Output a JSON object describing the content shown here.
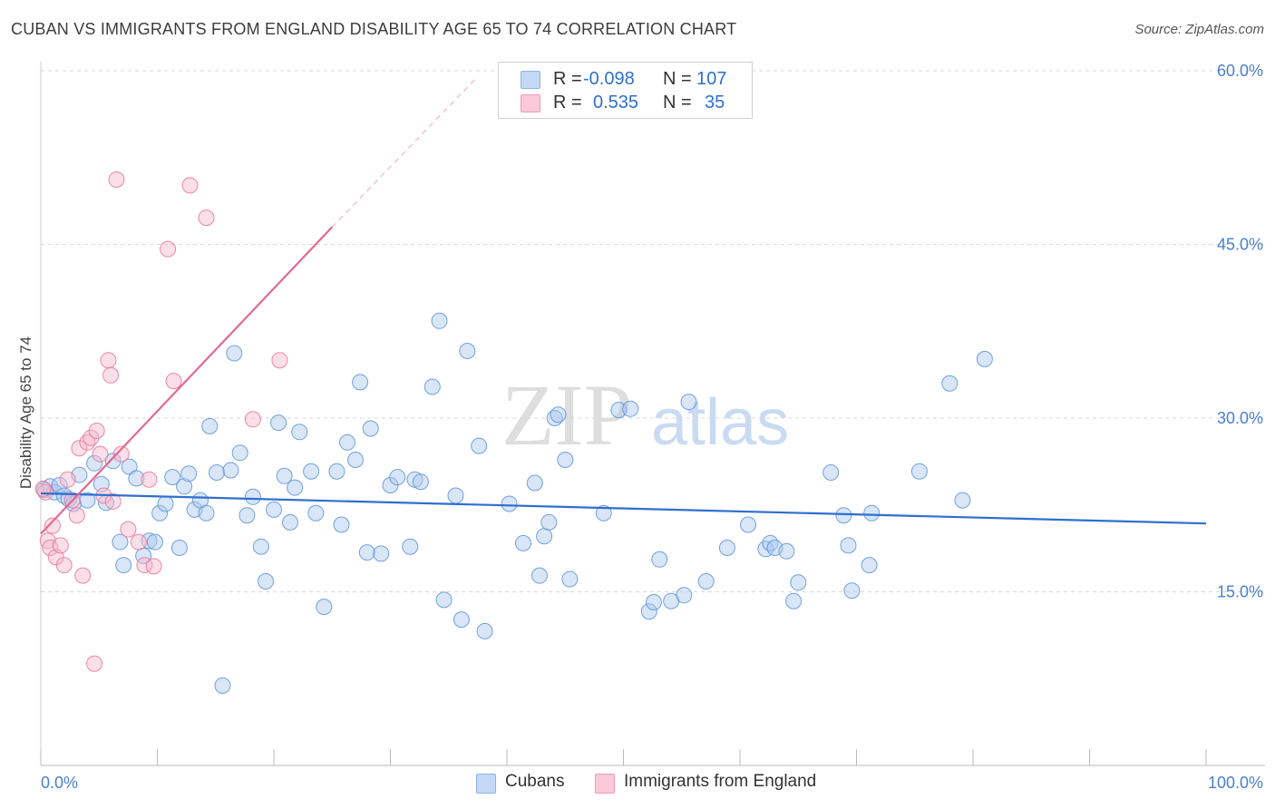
{
  "title": "CUBAN VS IMMIGRANTS FROM ENGLAND DISABILITY AGE 65 TO 74 CORRELATION CHART",
  "source": "Source: ZipAtlas.com",
  "watermark": {
    "left": "ZIP",
    "right": "atlas"
  },
  "legend": {
    "r_label": "R =",
    "n_label": "N =",
    "rows": [
      {
        "series": "Cubans",
        "r": "-0.098",
        "n": "107",
        "color": "#aac8f0"
      },
      {
        "series": "Immigrants from England",
        "r": "0.535",
        "n": "35",
        "color": "#f6b8cb"
      }
    ]
  },
  "bottom_legend": [
    "Cubans",
    "Immigrants from England"
  ],
  "chart_data": {
    "type": "scatter",
    "ylabel": "Disability Age 65 to 74",
    "xlabel": "",
    "xlim": [
      0,
      100
    ],
    "ylim": [
      0,
      60
    ],
    "x_tick_labels": [
      "0.0%",
      "100.0%"
    ],
    "y_tick_labels": [
      "15.0%",
      "30.0%",
      "45.0%",
      "60.0%"
    ],
    "y_ticks": [
      15,
      30,
      45,
      60
    ],
    "grid": true,
    "series": [
      {
        "name": "Cubans",
        "color": "#5b93d8",
        "fill": "#aac8f0",
        "trend": {
          "x": [
            0,
            100
          ],
          "y": [
            23.5,
            20.9
          ]
        },
        "points": [
          [
            0.3,
            23.8
          ],
          [
            0.8,
            24.1
          ],
          [
            1.2,
            23.6
          ],
          [
            1.6,
            24.2
          ],
          [
            2.0,
            23.3
          ],
          [
            2.4,
            23.0
          ],
          [
            2.8,
            22.6
          ],
          [
            3.3,
            25.1
          ],
          [
            4.0,
            22.9
          ],
          [
            4.6,
            26.1
          ],
          [
            5.2,
            24.3
          ],
          [
            5.6,
            22.7
          ],
          [
            6.2,
            26.3
          ],
          [
            6.8,
            19.3
          ],
          [
            7.1,
            17.3
          ],
          [
            7.6,
            25.8
          ],
          [
            8.2,
            24.8
          ],
          [
            8.8,
            18.1
          ],
          [
            9.3,
            19.4
          ],
          [
            9.8,
            19.3
          ],
          [
            10.2,
            21.8
          ],
          [
            10.7,
            22.6
          ],
          [
            11.3,
            24.9
          ],
          [
            11.9,
            18.8
          ],
          [
            12.3,
            24.1
          ],
          [
            12.7,
            25.2
          ],
          [
            13.2,
            22.1
          ],
          [
            13.7,
            22.9
          ],
          [
            14.2,
            21.8
          ],
          [
            14.5,
            29.3
          ],
          [
            15.1,
            25.3
          ],
          [
            16.3,
            25.5
          ],
          [
            16.6,
            35.6
          ],
          [
            17.1,
            27.0
          ],
          [
            17.7,
            21.6
          ],
          [
            18.2,
            23.2
          ],
          [
            18.9,
            18.9
          ],
          [
            19.3,
            15.9
          ],
          [
            20.0,
            22.1
          ],
          [
            20.4,
            29.6
          ],
          [
            20.9,
            25.0
          ],
          [
            21.4,
            21.0
          ],
          [
            21.8,
            24.0
          ],
          [
            22.2,
            28.8
          ],
          [
            23.2,
            25.4
          ],
          [
            23.6,
            21.8
          ],
          [
            24.3,
            13.7
          ],
          [
            25.4,
            25.4
          ],
          [
            25.8,
            20.8
          ],
          [
            26.3,
            27.9
          ],
          [
            27.0,
            26.4
          ],
          [
            27.4,
            33.1
          ],
          [
            28.0,
            18.4
          ],
          [
            28.3,
            29.1
          ],
          [
            29.2,
            18.3
          ],
          [
            30.0,
            24.2
          ],
          [
            30.6,
            24.9
          ],
          [
            31.7,
            18.9
          ],
          [
            32.1,
            24.7
          ],
          [
            32.6,
            24.5
          ],
          [
            33.6,
            32.7
          ],
          [
            34.2,
            38.4
          ],
          [
            34.6,
            14.3
          ],
          [
            35.6,
            23.3
          ],
          [
            36.1,
            12.6
          ],
          [
            36.6,
            35.8
          ],
          [
            37.6,
            27.6
          ],
          [
            38.1,
            11.6
          ],
          [
            40.2,
            22.6
          ],
          [
            41.4,
            19.2
          ],
          [
            42.4,
            24.4
          ],
          [
            42.8,
            16.4
          ],
          [
            43.2,
            19.8
          ],
          [
            43.6,
            21.0
          ],
          [
            44.1,
            30.0
          ],
          [
            44.4,
            30.3
          ],
          [
            45.0,
            26.4
          ],
          [
            45.4,
            16.1
          ],
          [
            48.3,
            21.8
          ],
          [
            49.6,
            30.7
          ],
          [
            50.6,
            30.8
          ],
          [
            52.2,
            13.3
          ],
          [
            52.6,
            14.1
          ],
          [
            53.1,
            17.8
          ],
          [
            54.1,
            14.2
          ],
          [
            55.2,
            14.7
          ],
          [
            55.6,
            31.4
          ],
          [
            57.1,
            15.9
          ],
          [
            58.9,
            18.8
          ],
          [
            60.7,
            20.8
          ],
          [
            62.2,
            18.7
          ],
          [
            62.6,
            19.2
          ],
          [
            63.0,
            18.8
          ],
          [
            64.0,
            18.5
          ],
          [
            64.6,
            14.2
          ],
          [
            65.0,
            15.8
          ],
          [
            67.8,
            25.3
          ],
          [
            68.9,
            21.6
          ],
          [
            69.3,
            19.0
          ],
          [
            69.6,
            15.1
          ],
          [
            71.1,
            17.3
          ],
          [
            71.3,
            21.8
          ],
          [
            75.4,
            25.4
          ],
          [
            78.0,
            33.0
          ],
          [
            79.1,
            22.9
          ],
          [
            81.0,
            35.1
          ],
          [
            15.6,
            6.9
          ]
        ]
      },
      {
        "name": "Immigrants from England",
        "color": "#e8749a",
        "fill": "#f6b8cb",
        "trend": {
          "x": [
            0,
            25
          ],
          "y": [
            20.0,
            46.5
          ]
        },
        "trend_dashed": {
          "x": [
            25,
            37.5
          ],
          "y": [
            46.5,
            59.5
          ]
        },
        "points": [
          [
            0.4,
            23.6
          ],
          [
            0.6,
            19.4
          ],
          [
            0.8,
            18.8
          ],
          [
            1.0,
            20.7
          ],
          [
            1.3,
            18.0
          ],
          [
            1.7,
            19.0
          ],
          [
            2.0,
            17.3
          ],
          [
            2.3,
            24.7
          ],
          [
            2.7,
            22.9
          ],
          [
            3.1,
            21.6
          ],
          [
            3.3,
            27.4
          ],
          [
            3.6,
            16.4
          ],
          [
            4.0,
            27.9
          ],
          [
            4.3,
            28.3
          ],
          [
            4.6,
            8.8
          ],
          [
            4.8,
            28.9
          ],
          [
            5.1,
            26.9
          ],
          [
            5.4,
            23.3
          ],
          [
            5.8,
            35.0
          ],
          [
            6.0,
            33.7
          ],
          [
            6.2,
            22.8
          ],
          [
            6.5,
            50.6
          ],
          [
            6.9,
            26.9
          ],
          [
            7.5,
            20.4
          ],
          [
            8.4,
            19.3
          ],
          [
            8.9,
            17.3
          ],
          [
            9.3,
            24.7
          ],
          [
            9.7,
            17.2
          ],
          [
            10.9,
            44.6
          ],
          [
            11.4,
            33.2
          ],
          [
            12.8,
            50.1
          ],
          [
            14.2,
            47.3
          ],
          [
            18.2,
            29.9
          ],
          [
            20.5,
            35.0
          ],
          [
            0.2,
            23.9
          ]
        ]
      }
    ]
  }
}
